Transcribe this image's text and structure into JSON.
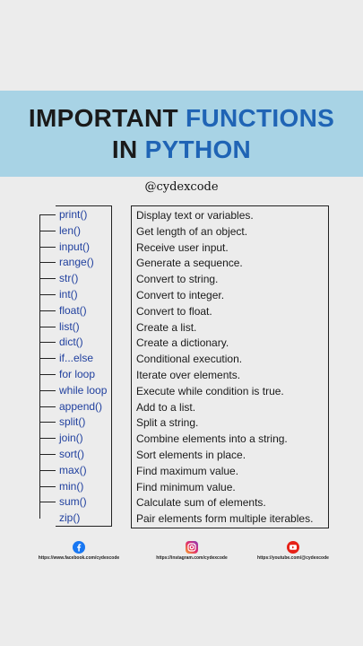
{
  "title": {
    "line1_dark": "IMPORTANT ",
    "line1_blue": "FUNCTIONS",
    "line2_dark": "IN ",
    "line2_blue": "PYTHON"
  },
  "handle": "@cydexcode",
  "colors": {
    "banner": "#a8d3e5",
    "title_dark": "#1a1a1a",
    "title_blue": "#1f64b5",
    "function_text": "#1f3f9e",
    "background": "#ececec"
  },
  "rows": [
    {
      "fn": "print()",
      "desc": "Display text or variables."
    },
    {
      "fn": "len()",
      "desc": "Get length of an object."
    },
    {
      "fn": "input()",
      "desc": "Receive user input."
    },
    {
      "fn": "range()",
      "desc": "Generate a sequence."
    },
    {
      "fn": "str()",
      "desc": "Convert to string."
    },
    {
      "fn": "int()",
      "desc": "Convert to integer."
    },
    {
      "fn": "float()",
      "desc": "Convert to float."
    },
    {
      "fn": "list()",
      "desc": "Create a list."
    },
    {
      "fn": "dict()",
      "desc": "Create a dictionary."
    },
    {
      "fn": "if...else",
      "desc": "Conditional execution."
    },
    {
      "fn": "for loop",
      "desc": "Iterate over elements."
    },
    {
      "fn": "while loop",
      "desc": "Execute while condition is true."
    },
    {
      "fn": "append()",
      "desc": "Add to a list."
    },
    {
      "fn": "split()",
      "desc": "Split a string."
    },
    {
      "fn": "join()",
      "desc": "Combine elements into a string."
    },
    {
      "fn": "sort()",
      "desc": "Sort elements in place."
    },
    {
      "fn": "max()",
      "desc": "Find maximum value."
    },
    {
      "fn": "min()",
      "desc": "Find minimum value."
    },
    {
      "fn": "sum()",
      "desc": "Calculate sum of elements."
    },
    {
      "fn": "zip()",
      "desc": "Pair elements form multiple iterables."
    }
  ],
  "social": [
    {
      "icon": "facebook-icon",
      "url": "https://www.facebook.com/cydexcode"
    },
    {
      "icon": "instagram-icon",
      "url": "https://instagram.com/cydexcode"
    },
    {
      "icon": "youtube-icon",
      "url": "https://youtube.com/@cydexcode"
    }
  ]
}
